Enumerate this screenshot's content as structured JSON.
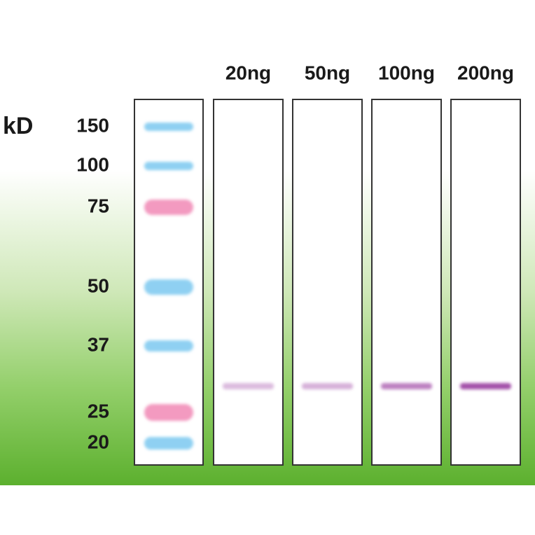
{
  "unit": "kD",
  "markers": [
    "150",
    "100",
    "75",
    "50",
    "37",
    "25",
    "20"
  ],
  "lanes": [
    "20ng",
    "50ng",
    "100ng",
    "200ng"
  ]
}
